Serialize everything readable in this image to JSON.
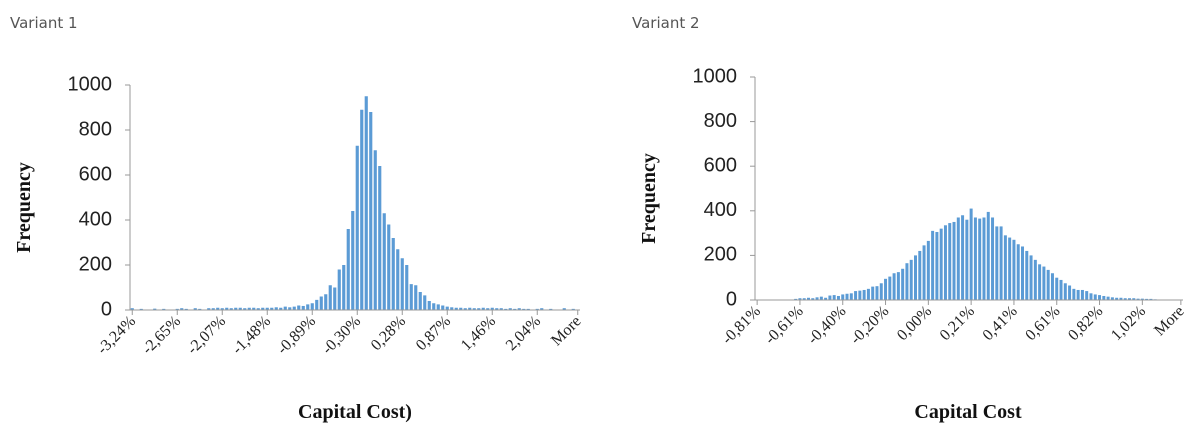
{
  "chart_data": [
    {
      "type": "bar",
      "title": "Variant 1",
      "xlabel": "Capital Cost)",
      "ylabel": "Frequency",
      "color": "#5b9bd5",
      "ylim": [
        0,
        1000
      ],
      "yticks": [
        0,
        200,
        400,
        600,
        800,
        1000
      ],
      "categories": [
        "-3,24%",
        null,
        null,
        null,
        null,
        null,
        null,
        null,
        null,
        null,
        "-2,65%",
        null,
        null,
        null,
        null,
        null,
        null,
        null,
        null,
        null,
        "-2,07%",
        null,
        null,
        null,
        null,
        null,
        null,
        null,
        null,
        null,
        "-1,48%",
        null,
        null,
        null,
        null,
        null,
        null,
        null,
        null,
        null,
        "-0,89%",
        null,
        null,
        null,
        null,
        null,
        null,
        null,
        null,
        null,
        "-0,30%",
        null,
        null,
        null,
        null,
        null,
        null,
        null,
        null,
        null,
        "0,28%",
        null,
        null,
        null,
        null,
        null,
        null,
        null,
        null,
        null,
        "0,87%",
        null,
        null,
        null,
        null,
        null,
        null,
        null,
        null,
        null,
        "1,46%",
        null,
        null,
        null,
        null,
        null,
        null,
        null,
        null,
        null,
        "2,04%",
        null,
        null,
        null,
        null,
        null,
        null,
        null,
        null,
        "More"
      ],
      "values": [
        8,
        0,
        5,
        0,
        0,
        6,
        0,
        5,
        0,
        0,
        5,
        8,
        5,
        0,
        8,
        5,
        0,
        8,
        8,
        10,
        8,
        10,
        8,
        10,
        10,
        8,
        10,
        10,
        8,
        10,
        10,
        10,
        12,
        10,
        15,
        12,
        15,
        20,
        18,
        25,
        30,
        45,
        60,
        70,
        110,
        100,
        180,
        200,
        360,
        440,
        730,
        890,
        950,
        880,
        710,
        640,
        430,
        380,
        320,
        270,
        230,
        200,
        115,
        110,
        80,
        65,
        40,
        30,
        25,
        20,
        15,
        12,
        10,
        10,
        8,
        10,
        8,
        8,
        10,
        8,
        10,
        8,
        8,
        5,
        8,
        5,
        8,
        5,
        5,
        0,
        5,
        8,
        0,
        5,
        0,
        0,
        8,
        0,
        5,
        0
      ]
    },
    {
      "type": "bar",
      "title": "Variant 2",
      "xlabel": "Capital Cost",
      "ylabel": "Frequency",
      "color": "#5b9bd5",
      "ylim": [
        0,
        1000
      ],
      "yticks": [
        0,
        200,
        400,
        600,
        800,
        1000
      ],
      "categories": [
        "-0,81%",
        null,
        null,
        null,
        null,
        null,
        null,
        null,
        null,
        null,
        "-0,61%",
        null,
        null,
        null,
        null,
        null,
        null,
        null,
        null,
        null,
        "-0,40%",
        null,
        null,
        null,
        null,
        null,
        null,
        null,
        null,
        null,
        "-0,20%",
        null,
        null,
        null,
        null,
        null,
        null,
        null,
        null,
        null,
        "0,00%",
        null,
        null,
        null,
        null,
        null,
        null,
        null,
        null,
        null,
        "0,21%",
        null,
        null,
        null,
        null,
        null,
        null,
        null,
        null,
        null,
        "0,41%",
        null,
        null,
        null,
        null,
        null,
        null,
        null,
        null,
        null,
        "0,61%",
        null,
        null,
        null,
        null,
        null,
        null,
        null,
        null,
        null,
        "0,82%",
        null,
        null,
        null,
        null,
        null,
        null,
        null,
        null,
        null,
        "1,02%",
        null,
        null,
        null,
        null,
        null,
        null,
        null,
        null,
        "More"
      ],
      "values": [
        0,
        0,
        0,
        0,
        0,
        0,
        0,
        0,
        0,
        5,
        8,
        8,
        10,
        8,
        12,
        15,
        10,
        20,
        22,
        18,
        25,
        28,
        30,
        40,
        42,
        45,
        50,
        60,
        62,
        75,
        95,
        105,
        120,
        125,
        140,
        165,
        180,
        200,
        220,
        245,
        265,
        310,
        305,
        320,
        335,
        345,
        350,
        370,
        380,
        360,
        410,
        370,
        365,
        370,
        395,
        370,
        330,
        330,
        290,
        280,
        270,
        250,
        240,
        220,
        200,
        180,
        160,
        150,
        135,
        120,
        100,
        90,
        75,
        65,
        50,
        45,
        45,
        40,
        30,
        25,
        22,
        18,
        15,
        12,
        10,
        10,
        8,
        8,
        8,
        6,
        6,
        5,
        5,
        3,
        2,
        0,
        0,
        0,
        0,
        0
      ]
    }
  ]
}
